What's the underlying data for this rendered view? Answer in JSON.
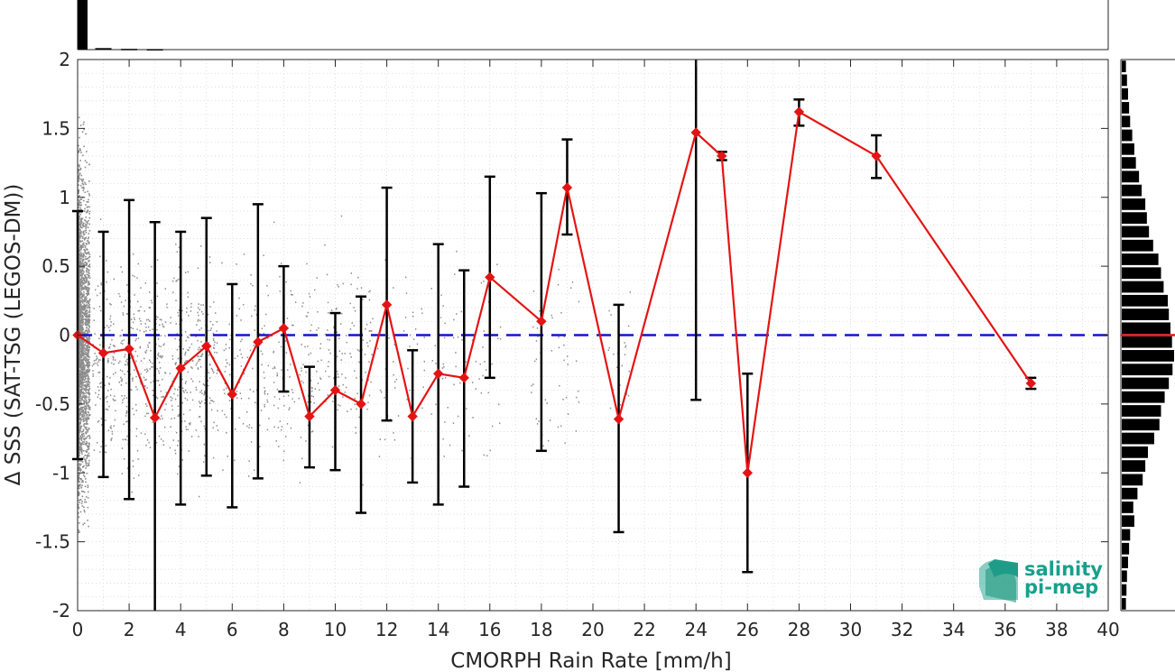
{
  "chart_data": {
    "type": "scatter",
    "xlabel": "CMORPH Rain Rate [mm/h]",
    "ylabel": "Δ SSS (SAT-TSG (LEGOS-DM))",
    "xlim": [
      0,
      40
    ],
    "ylim": [
      -2,
      2
    ],
    "x_ticks": [
      "0",
      "2",
      "4",
      "6",
      "8",
      "10",
      "12",
      "14",
      "16",
      "18",
      "20",
      "22",
      "24",
      "26",
      "28",
      "30",
      "32",
      "34",
      "36",
      "38",
      "40"
    ],
    "y_ticks": [
      "2",
      "1.5",
      "1",
      "0.5",
      "0",
      "-0.5",
      "-1",
      "-1.5",
      "-2"
    ],
    "grid": "dotted",
    "reference_line": {
      "y": 0,
      "style": "dashed",
      "color": "#1515d0"
    },
    "series": [
      {
        "marker": "diamond",
        "color": "#e41414",
        "points": [
          {
            "x": 0,
            "mean": 0.0,
            "low": -0.9,
            "high": 0.9
          },
          {
            "x": 1,
            "mean": -0.13,
            "low": -1.03,
            "high": 0.75
          },
          {
            "x": 2,
            "mean": -0.1,
            "low": -1.19,
            "high": 0.98
          },
          {
            "x": 3,
            "mean": -0.6,
            "low": -2.0,
            "high": 0.82
          },
          {
            "x": 4,
            "mean": -0.24,
            "low": -1.23,
            "high": 0.75
          },
          {
            "x": 5,
            "mean": -0.08,
            "low": -1.02,
            "high": 0.85
          },
          {
            "x": 6,
            "mean": -0.43,
            "low": -1.25,
            "high": 0.37
          },
          {
            "x": 7,
            "mean": -0.05,
            "low": -1.04,
            "high": 0.95
          },
          {
            "x": 8,
            "mean": 0.05,
            "low": -0.41,
            "high": 0.5
          },
          {
            "x": 9,
            "mean": -0.59,
            "low": -0.96,
            "high": -0.23
          },
          {
            "x": 10,
            "mean": -0.4,
            "low": -0.98,
            "high": 0.16
          },
          {
            "x": 11,
            "mean": -0.5,
            "low": -1.29,
            "high": 0.28
          },
          {
            "x": 12,
            "mean": 0.22,
            "low": -0.62,
            "high": 1.07
          },
          {
            "x": 13,
            "mean": -0.59,
            "low": -1.07,
            "high": -0.11
          },
          {
            "x": 14,
            "mean": -0.28,
            "low": -1.23,
            "high": 0.66
          },
          {
            "x": 15,
            "mean": -0.31,
            "low": -1.1,
            "high": 0.47
          },
          {
            "x": 16,
            "mean": 0.42,
            "low": -0.31,
            "high": 1.15
          },
          {
            "x": 18,
            "mean": 0.1,
            "low": -0.84,
            "high": 1.03
          },
          {
            "x": 19,
            "mean": 1.07,
            "low": 0.73,
            "high": 1.42
          },
          {
            "x": 21,
            "mean": -0.61,
            "low": -1.43,
            "high": 0.22
          },
          {
            "x": 24,
            "mean": 1.47,
            "low": -0.47,
            "high": 2.0
          },
          {
            "x": 25,
            "mean": 1.3,
            "low": 1.27,
            "high": 1.33
          },
          {
            "x": 26,
            "mean": -1.0,
            "low": -1.72,
            "high": -0.28
          },
          {
            "x": 28,
            "mean": 1.62,
            "low": 1.52,
            "high": 1.71
          },
          {
            "x": 31,
            "mean": 1.3,
            "low": 1.14,
            "high": 1.45
          },
          {
            "x": 37,
            "mean": -0.35,
            "low": -0.39,
            "high": -0.31
          }
        ]
      }
    ],
    "top_histogram": {
      "color": "#000000",
      "bins": [
        {
          "x": 0.25,
          "value": 1.0
        },
        {
          "x": 1.0,
          "value": 0.03
        },
        {
          "x": 2.0,
          "value": 0.015
        },
        {
          "x": 3.0,
          "value": 0.01
        }
      ]
    },
    "right_histogram": {
      "color": "#000000",
      "median_line_y": 0,
      "bins": [
        {
          "y": 1.95,
          "value": 0.08
        },
        {
          "y": 1.85,
          "value": 0.1
        },
        {
          "y": 1.75,
          "value": 0.12
        },
        {
          "y": 1.65,
          "value": 0.14
        },
        {
          "y": 1.55,
          "value": 0.16
        },
        {
          "y": 1.45,
          "value": 0.2
        },
        {
          "y": 1.35,
          "value": 0.24
        },
        {
          "y": 1.25,
          "value": 0.27
        },
        {
          "y": 1.15,
          "value": 0.33
        },
        {
          "y": 1.05,
          "value": 0.38
        },
        {
          "y": 0.95,
          "value": 0.45
        },
        {
          "y": 0.85,
          "value": 0.48
        },
        {
          "y": 0.75,
          "value": 0.52
        },
        {
          "y": 0.65,
          "value": 0.6
        },
        {
          "y": 0.55,
          "value": 0.7
        },
        {
          "y": 0.45,
          "value": 0.75
        },
        {
          "y": 0.35,
          "value": 0.8
        },
        {
          "y": 0.25,
          "value": 0.88
        },
        {
          "y": 0.15,
          "value": 0.9
        },
        {
          "y": 0.05,
          "value": 0.93
        },
        {
          "y": -0.05,
          "value": 0.96
        },
        {
          "y": -0.15,
          "value": 1.0
        },
        {
          "y": -0.25,
          "value": 0.97
        },
        {
          "y": -0.35,
          "value": 0.9
        },
        {
          "y": -0.45,
          "value": 0.82
        },
        {
          "y": -0.55,
          "value": 0.75
        },
        {
          "y": -0.65,
          "value": 0.72
        },
        {
          "y": -0.75,
          "value": 0.62
        },
        {
          "y": -0.85,
          "value": 0.5
        },
        {
          "y": -0.95,
          "value": 0.45
        },
        {
          "y": -1.05,
          "value": 0.4
        },
        {
          "y": -1.15,
          "value": 0.3
        },
        {
          "y": -1.25,
          "value": 0.22
        },
        {
          "y": -1.35,
          "value": 0.24
        },
        {
          "y": -1.45,
          "value": 0.16
        },
        {
          "y": -1.55,
          "value": 0.14
        },
        {
          "y": -1.65,
          "value": 0.12
        },
        {
          "y": -1.75,
          "value": 0.1
        },
        {
          "y": -1.85,
          "value": 0.09
        },
        {
          "y": -1.95,
          "value": 0.08
        }
      ]
    },
    "scatter_cloud": {
      "color": "#8c8c8c",
      "description_only": false
    }
  },
  "logo": {
    "line1": "salinity",
    "line2": "pi-mep",
    "color_text": "#17a08c",
    "color_mark": "#2aa893"
  }
}
